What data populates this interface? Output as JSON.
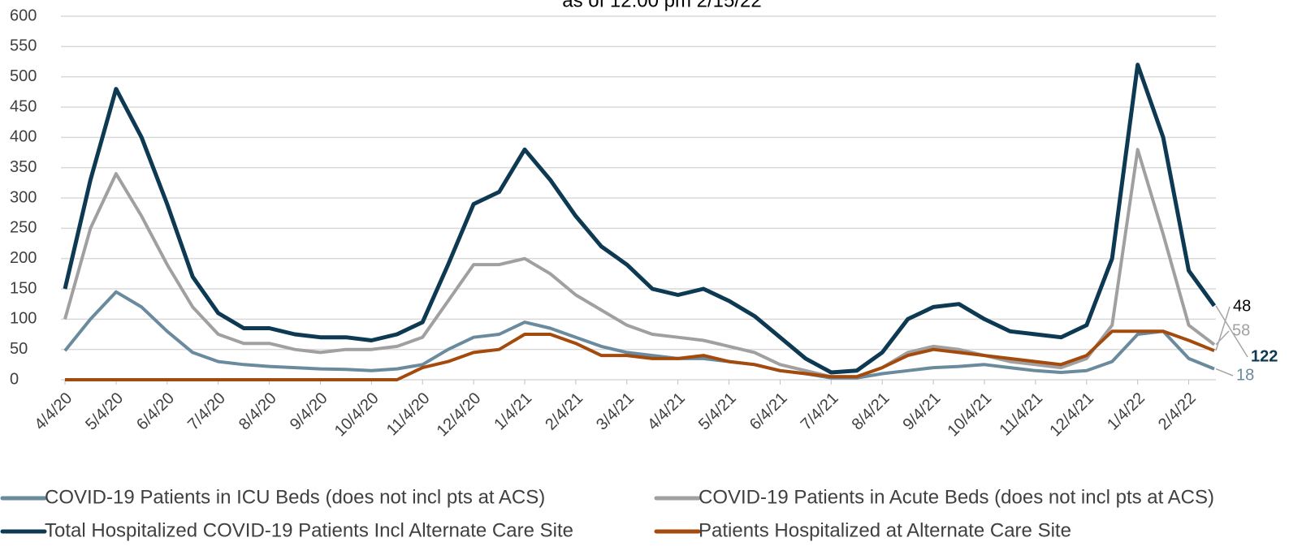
{
  "chart_data": {
    "type": "line",
    "subtitle": "as of 12:00 pm 2/15/22",
    "categories": [
      "4/4/20",
      null,
      "5/4/20",
      null,
      "6/4/20",
      null,
      "7/4/20",
      null,
      "8/4/20",
      null,
      "9/4/20",
      null,
      "10/4/20",
      null,
      "11/4/20",
      null,
      "12/4/20",
      null,
      "1/4/21",
      null,
      "2/4/21",
      null,
      "3/4/21",
      null,
      "4/4/21",
      null,
      "5/4/21",
      null,
      "6/4/21",
      null,
      "7/4/21",
      null,
      "8/4/21",
      null,
      "9/4/21",
      null,
      "10/4/21",
      null,
      "11/4/21",
      null,
      "12/4/21",
      null,
      "1/4/22",
      null,
      "2/4/22",
      null
    ],
    "series": [
      {
        "name": "COVID-19 Patients in  ICU Beds (does not incl pts at ACS)",
        "color": "#6a8a9e",
        "values": [
          48,
          100,
          145,
          120,
          80,
          45,
          30,
          25,
          22,
          20,
          18,
          17,
          15,
          18,
          25,
          50,
          70,
          75,
          95,
          85,
          70,
          55,
          45,
          40,
          35,
          35,
          30,
          25,
          15,
          10,
          3,
          3,
          10,
          15,
          20,
          22,
          25,
          20,
          15,
          12,
          15,
          30,
          75,
          80,
          35,
          18
        ]
      },
      {
        "name": "COVID-19 Patients in Acute Beds (does not incl pts at ACS)",
        "color": "#a0a0a0",
        "values": [
          100,
          250,
          340,
          270,
          190,
          120,
          75,
          60,
          60,
          50,
          45,
          50,
          50,
          55,
          70,
          130,
          190,
          190,
          200,
          175,
          140,
          115,
          90,
          75,
          70,
          65,
          55,
          45,
          25,
          15,
          5,
          5,
          20,
          45,
          55,
          50,
          40,
          30,
          25,
          20,
          35,
          90,
          380,
          240,
          90,
          58
        ]
      },
      {
        "name": "Total Hospitalized COVID-19 Patients Incl Alternate Care Site",
        "color": "#0d3a52",
        "values": [
          150,
          330,
          480,
          400,
          290,
          170,
          110,
          85,
          85,
          75,
          70,
          70,
          65,
          75,
          95,
          190,
          290,
          310,
          380,
          330,
          270,
          220,
          190,
          150,
          140,
          150,
          130,
          105,
          70,
          35,
          12,
          15,
          45,
          100,
          120,
          125,
          100,
          80,
          75,
          70,
          90,
          200,
          520,
          400,
          180,
          122
        ]
      },
      {
        "name": "Patients Hospitalized at Alternate Care Site",
        "color": "#a34a0c",
        "values": [
          0,
          0,
          0,
          0,
          0,
          0,
          0,
          0,
          0,
          0,
          0,
          0,
          0,
          0,
          20,
          30,
          45,
          50,
          75,
          75,
          60,
          40,
          40,
          35,
          35,
          40,
          30,
          25,
          15,
          10,
          5,
          5,
          20,
          40,
          50,
          45,
          40,
          35,
          30,
          25,
          40,
          80,
          80,
          80,
          65,
          48
        ]
      }
    ],
    "ylim": [
      0,
      600
    ],
    "yticks": [
      0,
      50,
      100,
      150,
      200,
      250,
      300,
      350,
      400,
      450,
      500,
      550,
      600
    ],
    "grid": true
  }
}
